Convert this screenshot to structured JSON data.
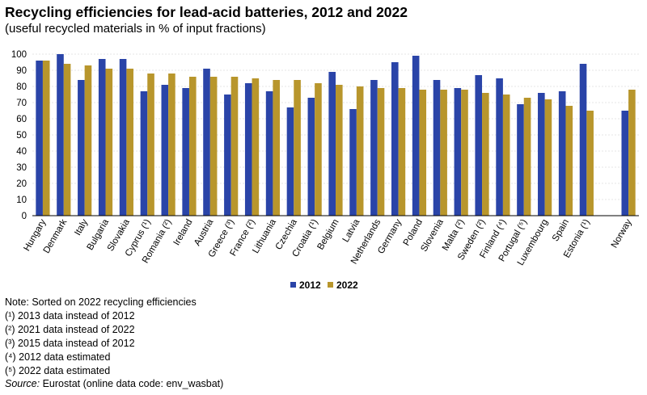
{
  "chart_data": {
    "type": "bar",
    "title": "Recycling efficiencies for lead-acid batteries, 2012 and 2022",
    "subtitle": "(useful recycled materials in % of input fractions)",
    "xlabel": "",
    "ylabel": "",
    "ylim": [
      0,
      100
    ],
    "yticks": [
      0,
      10,
      20,
      30,
      40,
      50,
      60,
      70,
      80,
      90,
      100
    ],
    "grid": true,
    "legend_position": "bottom-center",
    "categories": [
      "Hungary",
      "Denmark",
      "Italy",
      "Bulgaria",
      "Slovakia",
      "Cyprus (¹)",
      "Romania (²)",
      "Ireland",
      "Austria",
      "Greece (³)",
      "France (²)",
      "Lithuania",
      "Czechia",
      "Croatia (¹)",
      "Belgium",
      "Latvia",
      "Netherlands",
      "Germany",
      "Poland",
      "Slovenia",
      "Malta (²)",
      "Sweden (²)",
      "Finland (⁴)",
      "Portugal (⁵)",
      "Luxembourg",
      "Spain",
      "Estonia (¹)",
      "",
      "Norway"
    ],
    "series": [
      {
        "name": "2012",
        "color": "#2a44a8",
        "values": [
          96,
          100,
          84,
          97,
          97,
          77,
          81,
          79,
          91,
          75,
          82,
          77,
          67,
          73,
          89,
          66,
          84,
          95,
          99,
          84,
          79,
          87,
          85,
          69,
          76,
          77,
          94,
          null,
          65
        ]
      },
      {
        "name": "2022",
        "color": "#b8962c",
        "values": [
          96,
          94,
          93,
          91,
          91,
          88,
          88,
          86,
          86,
          86,
          85,
          84,
          84,
          82,
          81,
          80,
          79,
          79,
          78,
          78,
          78,
          76,
          75,
          73,
          72,
          68,
          65,
          null,
          78
        ]
      }
    ]
  },
  "notes": [
    "Note: Sorted on 2022 recycling efficiencies",
    "(¹) 2013 data instead of 2012",
    "(²) 2021 data instead of 2022",
    "(³) 2015 data instead of 2012",
    "(⁴) 2012 data estimated",
    "(⁵) 2022 data estimated"
  ],
  "source": {
    "label": "Source:",
    "text": " Eurostat (online data code: env_wasbat)"
  }
}
